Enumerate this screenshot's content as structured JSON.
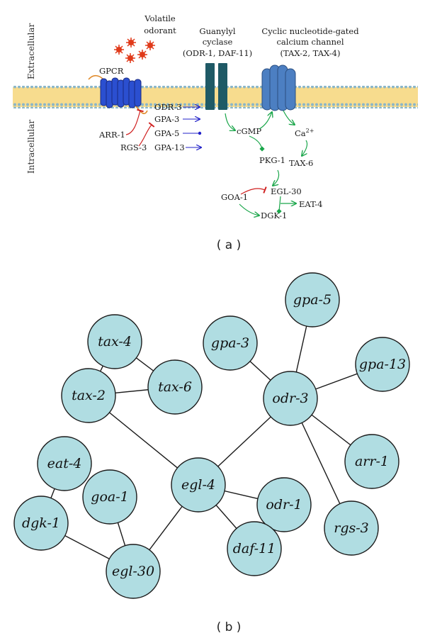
{
  "panel_a": {
    "caption": "( a )",
    "side_labels": {
      "extracellular": "Extracellular",
      "intracellular": "Intracellular"
    },
    "labels": {
      "volatile_odorant": [
        "Volatile",
        "odorant"
      ],
      "gpcr": "GPCR",
      "guanylyl_cyclase": [
        "Guanylyl",
        "cyclase",
        "(ODR-1, DAF-11)"
      ],
      "cng_channel": [
        "Cyclic nucleotide-gated",
        "calcium channel",
        "(TAX-2, TAX-4)"
      ],
      "odr3": "ODR-3",
      "gpa3": "GPA-3",
      "gpa5": "GPA-5",
      "gpa13": "GPA-13",
      "arr1": "ARR-1",
      "rgs3": "RGS-3",
      "cgmp": "cGMP",
      "ca_base": "Ca",
      "ca_sup": "2+",
      "pkg1": "PKG-1",
      "tax6": "TAX-6",
      "goa1": "GOA-1",
      "egl30": "EGL-30",
      "eat4": "EAT-4",
      "dgk1": "DGK-1"
    },
    "colors": {
      "membrane": "#f7dc8e",
      "membrane_head": "#8ab6c8",
      "receptor": "#2b4fd0",
      "cyclase": "#1f5a66",
      "channel": "#4c7fc2",
      "odorant": "#e03a1a",
      "activation_blue": "#2020c8",
      "activation_green": "#1aa64a",
      "inhibition_red": "#d02020",
      "receptor_tail": "#e08a2a"
    }
  },
  "panel_b": {
    "caption": "( b )",
    "node_color": "#b0dde2",
    "nodes": [
      {
        "id": "tax-4",
        "label": "tax-4"
      },
      {
        "id": "tax-2",
        "label": "tax-2"
      },
      {
        "id": "tax-6",
        "label": "tax-6"
      },
      {
        "id": "gpa-3",
        "label": "gpa-3"
      },
      {
        "id": "gpa-5",
        "label": "gpa-5"
      },
      {
        "id": "gpa-13",
        "label": "gpa-13"
      },
      {
        "id": "odr-3",
        "label": "odr-3"
      },
      {
        "id": "arr-1",
        "label": "arr-1"
      },
      {
        "id": "rgs-3",
        "label": "rgs-3"
      },
      {
        "id": "eat-4",
        "label": "eat-4"
      },
      {
        "id": "goa-1",
        "label": "goa-1"
      },
      {
        "id": "dgk-1",
        "label": "dgk-1"
      },
      {
        "id": "egl-4",
        "label": "egl-4"
      },
      {
        "id": "odr-1",
        "label": "odr-1"
      },
      {
        "id": "daf-11",
        "label": "daf-11"
      },
      {
        "id": "egl-30",
        "label": "egl-30"
      }
    ],
    "edges": [
      [
        "tax-4",
        "tax-2"
      ],
      [
        "tax-4",
        "tax-6"
      ],
      [
        "tax-2",
        "tax-6"
      ],
      [
        "tax-2",
        "egl-4"
      ],
      [
        "gpa-3",
        "odr-3"
      ],
      [
        "gpa-5",
        "odr-3"
      ],
      [
        "gpa-13",
        "odr-3"
      ],
      [
        "odr-3",
        "arr-1"
      ],
      [
        "odr-3",
        "rgs-3"
      ],
      [
        "odr-3",
        "egl-4"
      ],
      [
        "egl-4",
        "odr-1"
      ],
      [
        "egl-4",
        "daf-11"
      ],
      [
        "egl-4",
        "egl-30"
      ],
      [
        "eat-4",
        "dgk-1"
      ],
      [
        "dgk-1",
        "egl-30"
      ],
      [
        "goa-1",
        "egl-30"
      ]
    ]
  }
}
